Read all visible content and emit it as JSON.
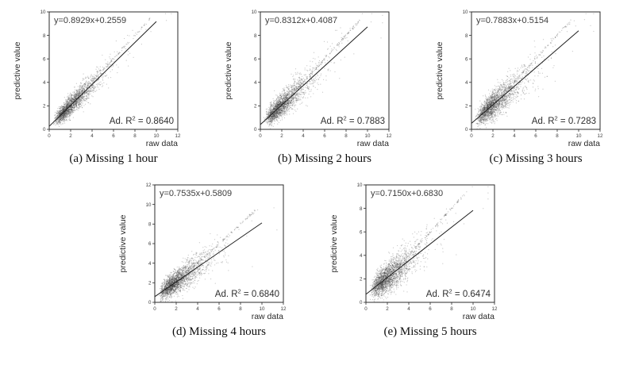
{
  "colors": {
    "background": "#ffffff",
    "frame": "#2b2b2b",
    "point": "#3a3a3a",
    "regression_line": "#1f1f1f",
    "annotation_text": "#3d3d3d",
    "caption_text": "#0d0d0d"
  },
  "chart_data": [
    {
      "id": "a",
      "type": "scatter",
      "caption": "(a) Missing 1 hour",
      "equation": "y=0.8929x+0.2559",
      "slope": 0.8929,
      "intercept": 0.2559,
      "r2_label_prefix": "Ad. R",
      "r2_superscript": "2",
      "r2_label_rest": " = 0.8640",
      "adjusted_r2": 0.864,
      "xlabel": "raw data",
      "ylabel": "predictive value",
      "xlim": [
        0,
        12
      ],
      "ylim": [
        0,
        10
      ],
      "xticks": [
        0,
        2,
        4,
        6,
        8,
        10,
        12
      ],
      "yticks": [
        0,
        2,
        4,
        6,
        8,
        10
      ],
      "regression_line_x_range": [
        0,
        10
      ],
      "scatter": {
        "n": 2200,
        "seed": 101,
        "noise_sd": 0.46,
        "lognorm_mu": 0.72,
        "lognorm_sigma": 0.52,
        "identity_streak_frac": 0.05
      }
    },
    {
      "id": "b",
      "type": "scatter",
      "caption": "(b) Missing 2 hours",
      "equation": "y=0.8312x+0.4087",
      "slope": 0.8312,
      "intercept": 0.4087,
      "r2_label_prefix": "Ad. R",
      "r2_superscript": "2",
      "r2_label_rest": " = 0.7883",
      "adjusted_r2": 0.7883,
      "xlabel": "raw data",
      "ylabel": "predictive value",
      "xlim": [
        0,
        12
      ],
      "ylim": [
        0,
        10
      ],
      "xticks": [
        0,
        2,
        4,
        6,
        8,
        10,
        12
      ],
      "yticks": [
        0,
        2,
        4,
        6,
        8,
        10
      ],
      "regression_line_x_range": [
        0,
        10
      ],
      "scatter": {
        "n": 2200,
        "seed": 202,
        "noise_sd": 0.56,
        "lognorm_mu": 0.72,
        "lognorm_sigma": 0.52,
        "identity_streak_frac": 0.05
      }
    },
    {
      "id": "c",
      "type": "scatter",
      "caption": "(c) Missing 3 hours",
      "equation": "y=0.7883x+0.5154",
      "slope": 0.7883,
      "intercept": 0.5154,
      "r2_label_prefix": "Ad. R",
      "r2_superscript": "2",
      "r2_label_rest": " = 0.7283",
      "adjusted_r2": 0.7283,
      "xlabel": "raw data",
      "ylabel": "predictive value",
      "xlim": [
        0,
        12
      ],
      "ylim": [
        0,
        10
      ],
      "xticks": [
        0,
        2,
        4,
        6,
        8,
        10,
        12
      ],
      "yticks": [
        0,
        2,
        4,
        6,
        8,
        10
      ],
      "regression_line_x_range": [
        0,
        10
      ],
      "scatter": {
        "n": 2200,
        "seed": 303,
        "noise_sd": 0.63,
        "lognorm_mu": 0.72,
        "lognorm_sigma": 0.52,
        "identity_streak_frac": 0.05
      }
    },
    {
      "id": "d",
      "type": "scatter",
      "caption": "(d) Missing 4 hours",
      "equation": "y=0.7535x+0.5809",
      "slope": 0.7535,
      "intercept": 0.5809,
      "r2_label_prefix": "Ad. R",
      "r2_superscript": "2",
      "r2_label_rest": " = 0.6840",
      "adjusted_r2": 0.684,
      "xlabel": "raw data",
      "ylabel": "predictive value",
      "xlim": [
        0,
        12
      ],
      "ylim": [
        0,
        12
      ],
      "xticks": [
        0,
        2,
        4,
        6,
        8,
        10,
        12
      ],
      "yticks": [
        0,
        2,
        4,
        6,
        8,
        10,
        12
      ],
      "regression_line_x_range": [
        0,
        10
      ],
      "scatter": {
        "n": 2300,
        "seed": 404,
        "noise_sd": 0.67,
        "lognorm_mu": 0.72,
        "lognorm_sigma": 0.52,
        "identity_streak_frac": 0.05
      }
    },
    {
      "id": "e",
      "type": "scatter",
      "caption": "(e) Missing 5 hours",
      "equation": "y=0.7150x+0.6830",
      "slope": 0.715,
      "intercept": 0.683,
      "r2_label_prefix": "Ad. R",
      "r2_superscript": "2",
      "r2_label_rest": " = 0.6474",
      "adjusted_r2": 0.6474,
      "xlabel": "raw data",
      "ylabel": "predictive value",
      "xlim": [
        0,
        12
      ],
      "ylim": [
        0,
        10
      ],
      "xticks": [
        0,
        2,
        4,
        6,
        8,
        10,
        12
      ],
      "yticks": [
        0,
        2,
        4,
        6,
        8,
        10
      ],
      "regression_line_x_range": [
        0,
        10
      ],
      "scatter": {
        "n": 2300,
        "seed": 505,
        "noise_sd": 0.69,
        "lognorm_mu": 0.72,
        "lognorm_sigma": 0.52,
        "identity_streak_frac": 0.05
      }
    }
  ]
}
